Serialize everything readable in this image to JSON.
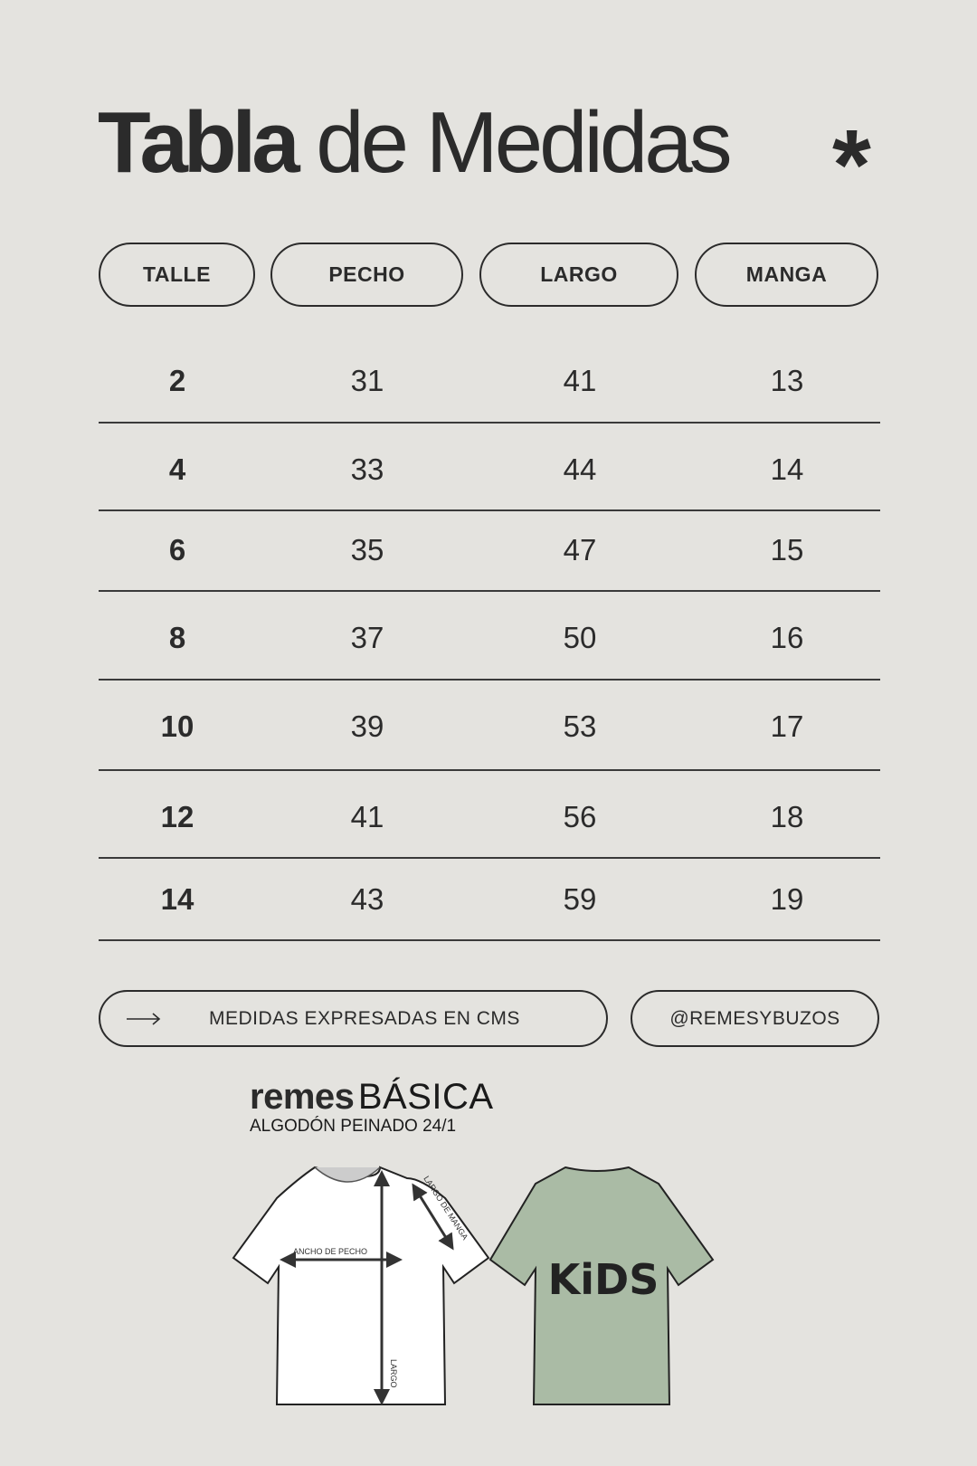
{
  "title": {
    "bold": "Tabla",
    "light": "de Medidas",
    "icon": "asterisk-icon"
  },
  "headers": [
    "TALLE",
    "PECHO",
    "LARGO",
    "MANGA"
  ],
  "rows": [
    [
      "2",
      "31",
      "41",
      "13"
    ],
    [
      "4",
      "33",
      "44",
      "14"
    ],
    [
      "6",
      "35",
      "47",
      "15"
    ],
    [
      "8",
      "37",
      "50",
      "16"
    ],
    [
      "10",
      "39",
      "53",
      "17"
    ],
    [
      "12",
      "41",
      "56",
      "18"
    ],
    [
      "14",
      "43",
      "59",
      "19"
    ]
  ],
  "footer": {
    "note": "MEDIDAS EXPRESADAS EN CMS",
    "note_icon": "arrow-right-icon",
    "handle": "@REMESYBUZOS"
  },
  "product": {
    "brand": "remes",
    "name": "BÁSICA",
    "material": "ALGODÓN PEINADO 24/1",
    "labels": {
      "chest": "ANCHO DE PECHO",
      "sleeve": "LARGO DE MANGA",
      "length": "LARGO"
    },
    "back_print": "KiDS",
    "shirt_color": "#aabba5"
  }
}
